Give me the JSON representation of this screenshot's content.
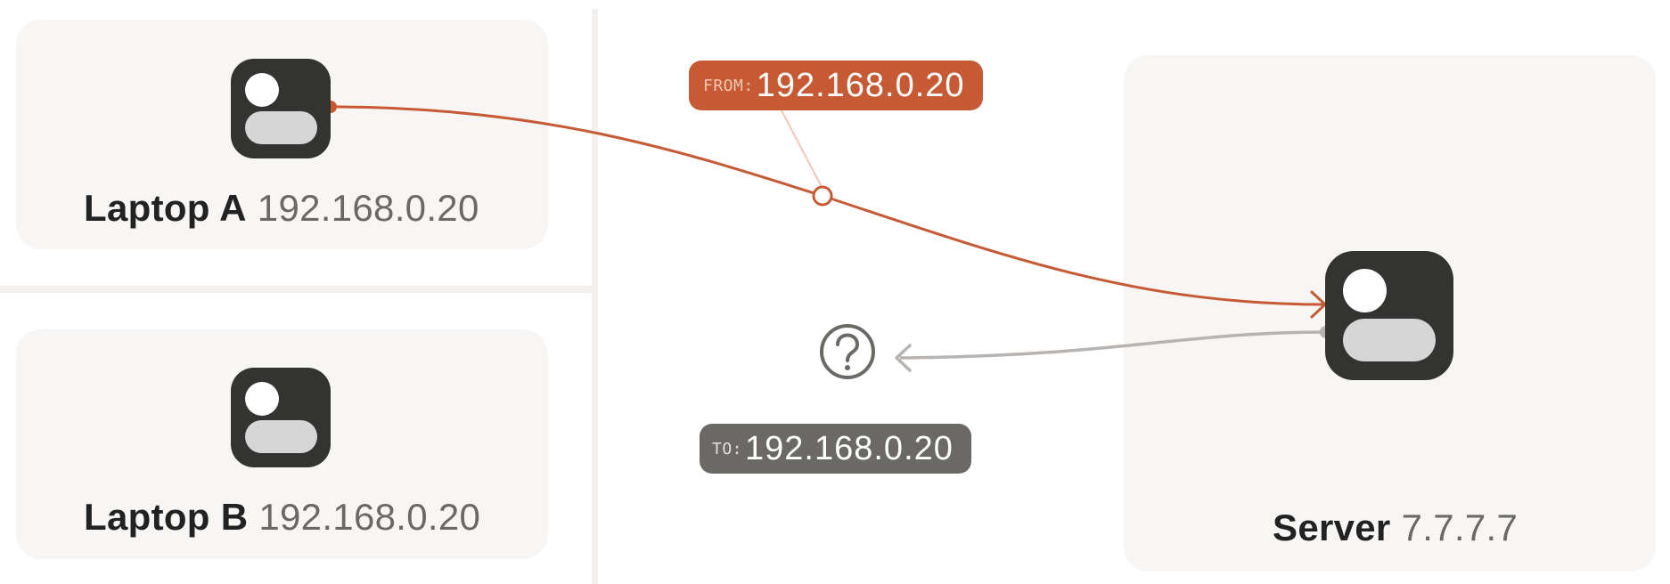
{
  "devices": {
    "laptop_a": {
      "name": "Laptop A",
      "ip": "192.168.0.20"
    },
    "laptop_b": {
      "name": "Laptop B",
      "ip": "192.168.0.20"
    },
    "server": {
      "name": "Server",
      "ip": "7.7.7.7"
    }
  },
  "packets": {
    "outgoing": {
      "prefix": "FROM:",
      "address": "192.168.0.20"
    },
    "reply": {
      "prefix": "TO:",
      "address": "192.168.0.20"
    }
  },
  "icons": {
    "device": "device-icon",
    "unknown": "question-icon"
  },
  "colors": {
    "outgoing": "#c65a34",
    "reply": "#b7b3b0",
    "unknown": "#6b6966",
    "panel": "#f7f6f4",
    "icon": "#333331"
  }
}
